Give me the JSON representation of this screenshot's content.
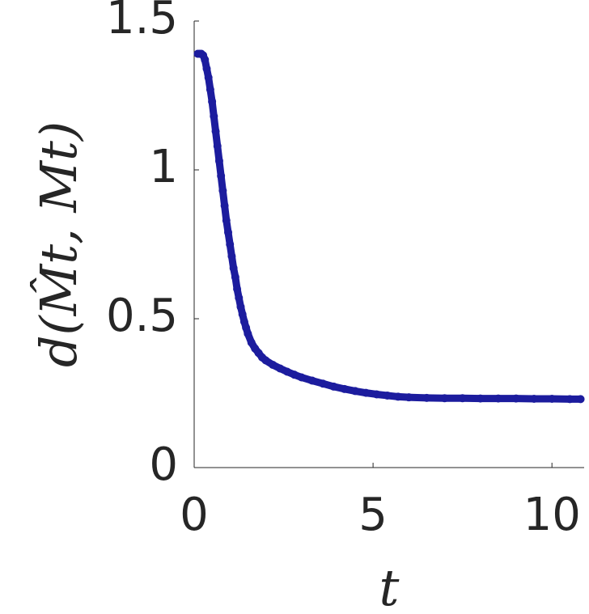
{
  "chart_data": {
    "type": "scatter",
    "xlabel": "t",
    "ylabel": "d(M̂t, Mt)",
    "color": "#1c1c9e",
    "xlim": [
      0,
      10.9
    ],
    "ylim": [
      0,
      1.5
    ],
    "xticks": [
      0,
      5,
      10
    ],
    "yticks": [
      0,
      0.5,
      1,
      1.5
    ],
    "series": [
      {
        "name": null,
        "color": "#1c1c9e",
        "x": [
          0.1,
          0.15,
          0.2,
          0.25,
          0.3,
          0.35,
          0.4,
          0.45,
          0.5,
          0.55,
          0.6,
          0.65,
          0.7,
          0.75,
          0.8,
          0.85,
          0.9,
          0.95,
          1.0,
          1.05,
          1.1,
          1.15,
          1.2,
          1.25,
          1.3,
          1.35,
          1.4,
          1.45,
          1.5,
          1.6,
          1.7,
          1.8,
          1.9,
          2.0,
          2.2,
          2.4,
          2.6,
          2.8,
          3.0,
          3.3,
          3.6,
          3.9,
          4.2,
          4.5,
          4.8,
          5.1,
          5.4,
          5.7,
          6.0,
          6.5,
          7.0,
          7.5,
          8.0,
          8.5,
          9.0,
          9.5,
          10.0,
          10.5,
          10.8
        ],
        "values": [
          1.39,
          1.39,
          1.39,
          1.385,
          1.37,
          1.34,
          1.31,
          1.27,
          1.23,
          1.18,
          1.13,
          1.08,
          1.03,
          0.98,
          0.93,
          0.88,
          0.83,
          0.79,
          0.75,
          0.71,
          0.67,
          0.64,
          0.6,
          0.57,
          0.54,
          0.515,
          0.49,
          0.47,
          0.45,
          0.42,
          0.4,
          0.385,
          0.37,
          0.36,
          0.345,
          0.333,
          0.322,
          0.312,
          0.303,
          0.292,
          0.282,
          0.272,
          0.264,
          0.257,
          0.251,
          0.246,
          0.242,
          0.238,
          0.236,
          0.234,
          0.233,
          0.233,
          0.232,
          0.232,
          0.232,
          0.231,
          0.231,
          0.23,
          0.23
        ]
      }
    ]
  }
}
